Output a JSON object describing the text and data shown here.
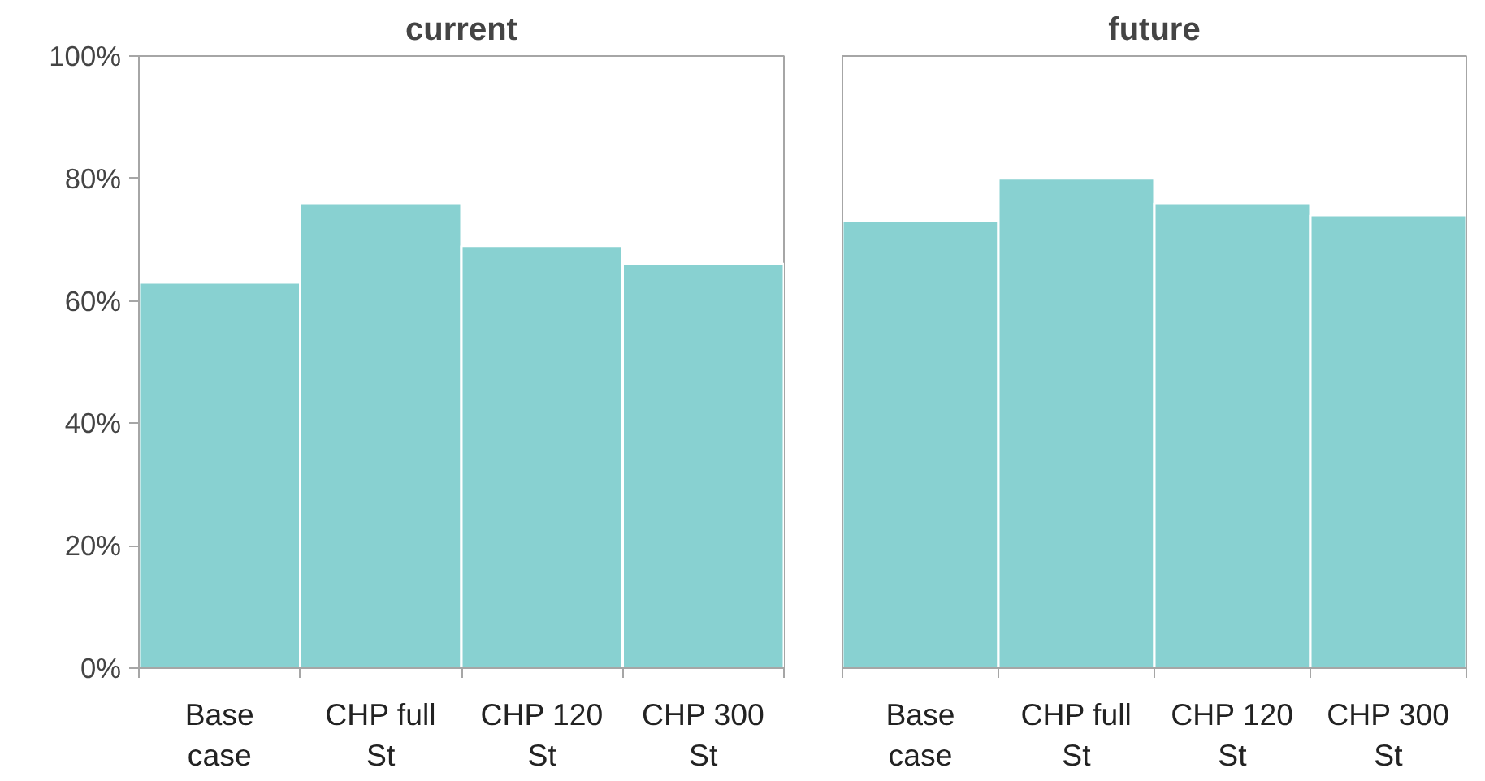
{
  "chart_data": [
    {
      "type": "bar",
      "title": "current",
      "categories": [
        "Base case",
        "CHP full St",
        "CHP 120 St",
        "CHP 300 St"
      ],
      "values": [
        63,
        76,
        69,
        66
      ],
      "color": "#88d1d1",
      "ylim": [
        0,
        100
      ],
      "yticks": [
        {
          "value": 0,
          "label": "0%"
        },
        {
          "value": 20,
          "label": "20%"
        },
        {
          "value": 40,
          "label": "40%"
        },
        {
          "value": 60,
          "label": "60%"
        },
        {
          "value": 80,
          "label": "80%"
        },
        {
          "value": 100,
          "label": "100%"
        }
      ],
      "grid": false
    },
    {
      "type": "bar",
      "title": "future",
      "categories": [
        "Base case",
        "CHP full St",
        "CHP 120 St",
        "CHP 300 St"
      ],
      "values": [
        73,
        80,
        76,
        74
      ],
      "color": "#88d1d1",
      "ylim": [
        0,
        100
      ],
      "grid": false,
      "tick_labels": "x"
    }
  ]
}
